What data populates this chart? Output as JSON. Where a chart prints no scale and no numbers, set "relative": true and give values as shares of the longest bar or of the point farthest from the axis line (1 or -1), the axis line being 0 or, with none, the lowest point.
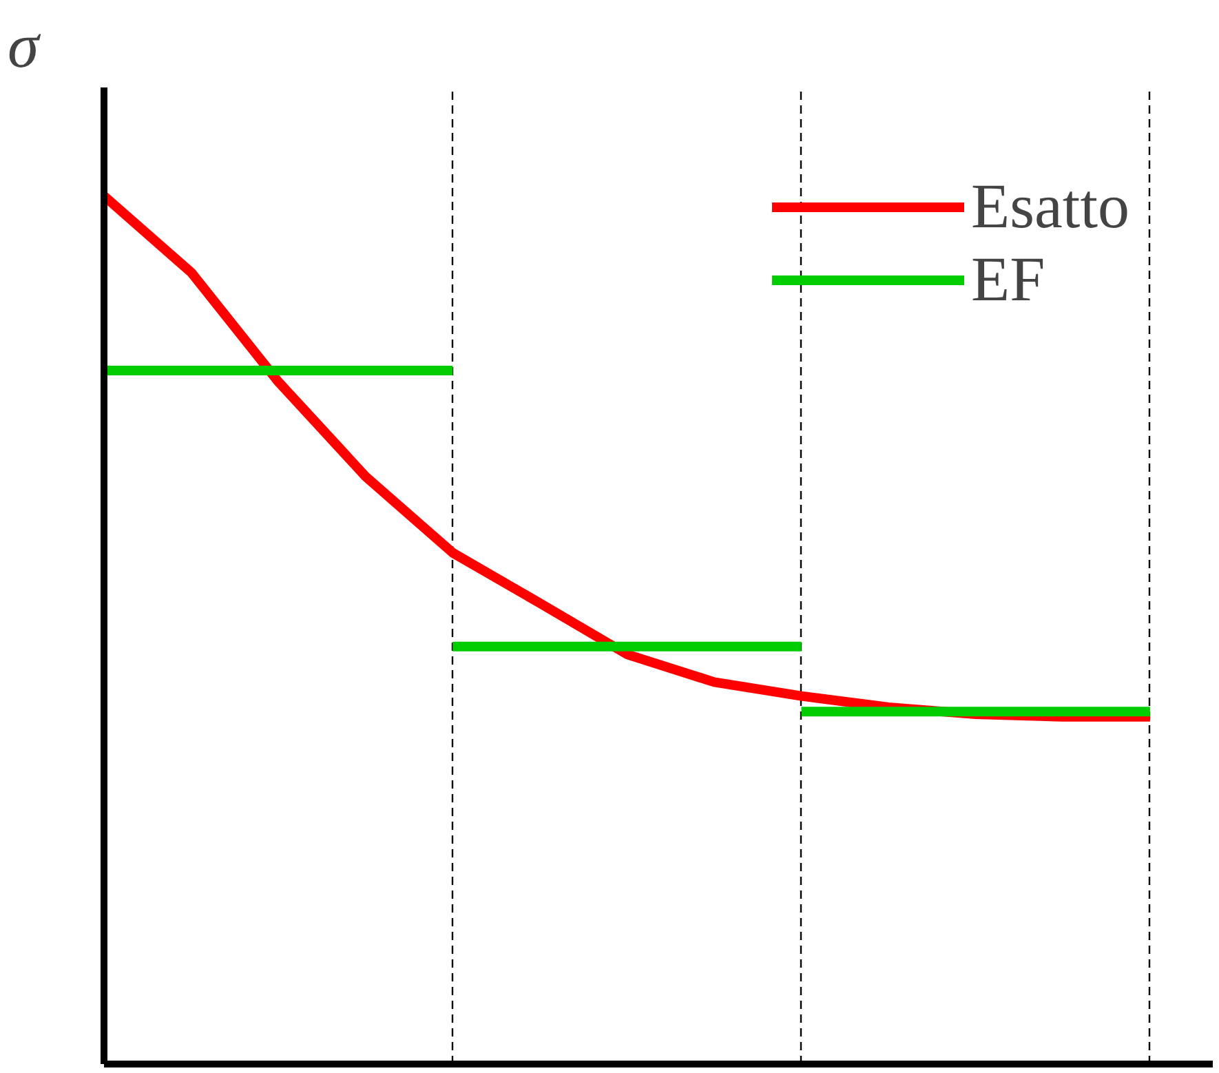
{
  "chart_data": {
    "type": "line",
    "relative": true,
    "ylabel": "σ",
    "legend": "top right",
    "grid": "x",
    "marker": "none",
    "line_style": "solid",
    "categories": [
      null,
      null,
      null,
      null,
      null,
      null,
      null,
      null,
      null,
      null,
      null,
      null,
      null
    ],
    "series": [
      {
        "name": "Esatto",
        "color": "#ff0000",
        "values": [
          1,
          0.912,
          0.786,
          0.677,
          0.589,
          0.531,
          0.472,
          0.44,
          0.424,
          0.411,
          0.403,
          0.4,
          0.4
        ]
      },
      {
        "name": "EF",
        "color": "#00cc00",
        "values": [
          0.799,
          0.799,
          0.799,
          0.799,
          0.799,
          null,
          null,
          null,
          null,
          null,
          null,
          null,
          null
        ]
      },
      {
        "color": "#00cc00",
        "values": [
          null,
          null,
          null,
          null,
          0.481,
          0.481,
          0.481,
          0.481,
          0.481,
          null,
          null,
          null,
          null
        ]
      },
      {
        "color": "#00cc00",
        "values": [
          null,
          null,
          null,
          null,
          null,
          null,
          null,
          null,
          0.406,
          0.406,
          0.406,
          0.406,
          0.406
        ]
      }
    ]
  }
}
